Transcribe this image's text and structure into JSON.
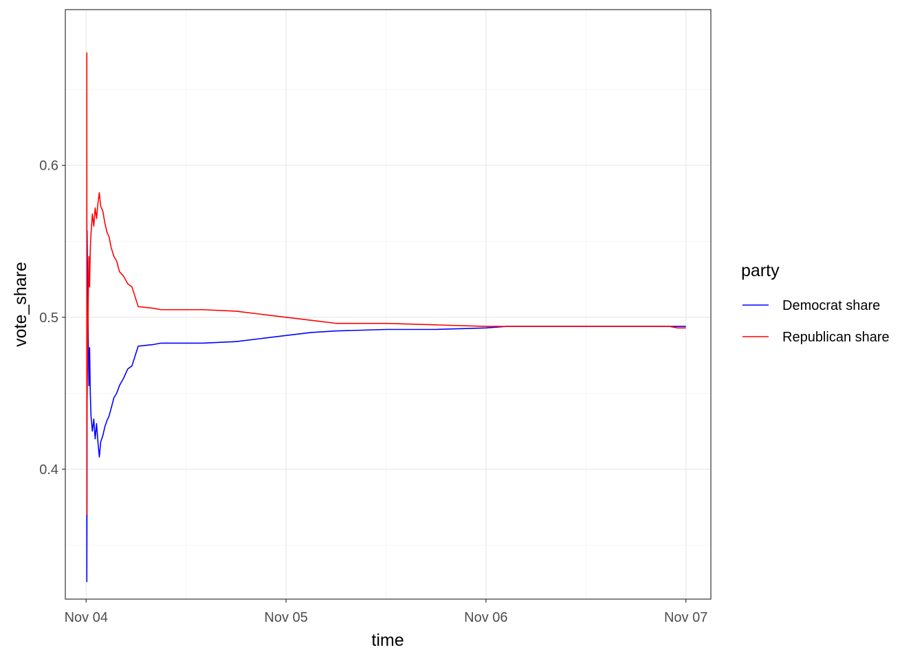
{
  "chart_data": {
    "type": "line",
    "xlabel": "time",
    "ylabel": "vote_share",
    "x_tick_labels": [
      "Nov 04",
      "Nov 05",
      "Nov 06",
      "Nov 07"
    ],
    "x_ticks": [
      "2020-11-04",
      "2020-11-05",
      "2020-11-06",
      "2020-11-07"
    ],
    "x_minor_ticks": [
      "2020-11-04 12:00",
      "2020-11-05 12:00",
      "2020-11-06 12:00"
    ],
    "xlim": [
      "2020-11-03 21:30",
      "2020-11-07 03:00"
    ],
    "y_ticks": [
      0.4,
      0.5,
      0.6
    ],
    "y_tick_labels": [
      "0.4",
      "0.5",
      "0.6"
    ],
    "y_minor_ticks": [
      0.35,
      0.45,
      0.55,
      0.65
    ],
    "ylim": [
      0.3145,
      0.7025
    ],
    "grid": true,
    "legend": {
      "title": "party",
      "position": "right"
    },
    "series": [
      {
        "name": "Democrat share",
        "color": "#0000ff",
        "points": [
          [
            "2020-11-04 00:05",
            0.37
          ],
          [
            "2020-11-04 00:05",
            0.326
          ],
          [
            "2020-11-04 00:06",
            0.37
          ],
          [
            "2020-11-04 00:07",
            0.557
          ],
          [
            "2020-11-04 00:10",
            0.53
          ],
          [
            "2020-11-04 00:15",
            0.49
          ],
          [
            "2020-11-04 00:20",
            0.455
          ],
          [
            "2020-11-04 00:25",
            0.48
          ],
          [
            "2020-11-04 00:30",
            0.45
          ],
          [
            "2020-11-04 00:35",
            0.435
          ],
          [
            "2020-11-04 00:45",
            0.425
          ],
          [
            "2020-11-04 00:55",
            0.433
          ],
          [
            "2020-11-04 01:05",
            0.42
          ],
          [
            "2020-11-04 01:15",
            0.43
          ],
          [
            "2020-11-04 01:25",
            0.418
          ],
          [
            "2020-11-04 01:35",
            0.408
          ],
          [
            "2020-11-04 01:45",
            0.418
          ],
          [
            "2020-11-04 02:00",
            0.422
          ],
          [
            "2020-11-04 02:15",
            0.428
          ],
          [
            "2020-11-04 02:30",
            0.432
          ],
          [
            "2020-11-04 02:45",
            0.435
          ],
          [
            "2020-11-04 03:00",
            0.44
          ],
          [
            "2020-11-04 03:20",
            0.447
          ],
          [
            "2020-11-04 03:40",
            0.45
          ],
          [
            "2020-11-04 04:00",
            0.455
          ],
          [
            "2020-11-04 04:30",
            0.46
          ],
          [
            "2020-11-04 05:00",
            0.466
          ],
          [
            "2020-11-04 05:30",
            0.468
          ],
          [
            "2020-11-04 06:15",
            0.481
          ],
          [
            "2020-11-04 08:00",
            0.482
          ],
          [
            "2020-11-04 09:00",
            0.483
          ],
          [
            "2020-11-04 14:00",
            0.483
          ],
          [
            "2020-11-04 18:00",
            0.484
          ],
          [
            "2020-11-04 21:00",
            0.486
          ],
          [
            "2020-11-05 00:00",
            0.488
          ],
          [
            "2020-11-05 03:00",
            0.49
          ],
          [
            "2020-11-05 06:00",
            0.491
          ],
          [
            "2020-11-05 12:00",
            0.492
          ],
          [
            "2020-11-05 18:00",
            0.492
          ],
          [
            "2020-11-06 00:00",
            0.493
          ],
          [
            "2020-11-06 02:30",
            0.494
          ],
          [
            "2020-11-06 12:00",
            0.494
          ],
          [
            "2020-11-06 22:00",
            0.494
          ],
          [
            "2020-11-07 00:00",
            0.494
          ]
        ]
      },
      {
        "name": "Republican share",
        "color": "#ff0000",
        "points": [
          [
            "2020-11-04 00:05",
            0.37
          ],
          [
            "2020-11-04 00:05",
            0.674
          ],
          [
            "2020-11-04 00:06",
            0.43
          ],
          [
            "2020-11-04 00:07",
            0.443
          ],
          [
            "2020-11-04 00:10",
            0.47
          ],
          [
            "2020-11-04 00:15",
            0.51
          ],
          [
            "2020-11-04 00:20",
            0.54
          ],
          [
            "2020-11-04 00:25",
            0.52
          ],
          [
            "2020-11-04 00:30",
            0.545
          ],
          [
            "2020-11-04 00:35",
            0.555
          ],
          [
            "2020-11-04 00:45",
            0.568
          ],
          [
            "2020-11-04 00:55",
            0.56
          ],
          [
            "2020-11-04 01:05",
            0.572
          ],
          [
            "2020-11-04 01:15",
            0.565
          ],
          [
            "2020-11-04 01:25",
            0.575
          ],
          [
            "2020-11-04 01:35",
            0.582
          ],
          [
            "2020-11-04 01:45",
            0.573
          ],
          [
            "2020-11-04 02:00",
            0.57
          ],
          [
            "2020-11-04 02:15",
            0.562
          ],
          [
            "2020-11-04 02:30",
            0.556
          ],
          [
            "2020-11-04 02:45",
            0.553
          ],
          [
            "2020-11-04 03:00",
            0.546
          ],
          [
            "2020-11-04 03:20",
            0.54
          ],
          [
            "2020-11-04 03:40",
            0.537
          ],
          [
            "2020-11-04 04:00",
            0.53
          ],
          [
            "2020-11-04 04:30",
            0.527
          ],
          [
            "2020-11-04 05:00",
            0.522
          ],
          [
            "2020-11-04 05:30",
            0.52
          ],
          [
            "2020-11-04 06:15",
            0.507
          ],
          [
            "2020-11-04 08:00",
            0.506
          ],
          [
            "2020-11-04 09:00",
            0.505
          ],
          [
            "2020-11-04 14:00",
            0.505
          ],
          [
            "2020-11-04 18:00",
            0.504
          ],
          [
            "2020-11-04 21:00",
            0.502
          ],
          [
            "2020-11-05 00:00",
            0.5
          ],
          [
            "2020-11-05 03:00",
            0.498
          ],
          [
            "2020-11-05 06:00",
            0.496
          ],
          [
            "2020-11-05 12:00",
            0.496
          ],
          [
            "2020-11-05 18:00",
            0.495
          ],
          [
            "2020-11-06 00:00",
            0.494
          ],
          [
            "2020-11-06 02:30",
            0.494
          ],
          [
            "2020-11-06 12:00",
            0.494
          ],
          [
            "2020-11-06 22:00",
            0.494
          ],
          [
            "2020-11-06 23:00",
            0.493
          ],
          [
            "2020-11-07 00:00",
            0.493
          ]
        ]
      }
    ]
  }
}
